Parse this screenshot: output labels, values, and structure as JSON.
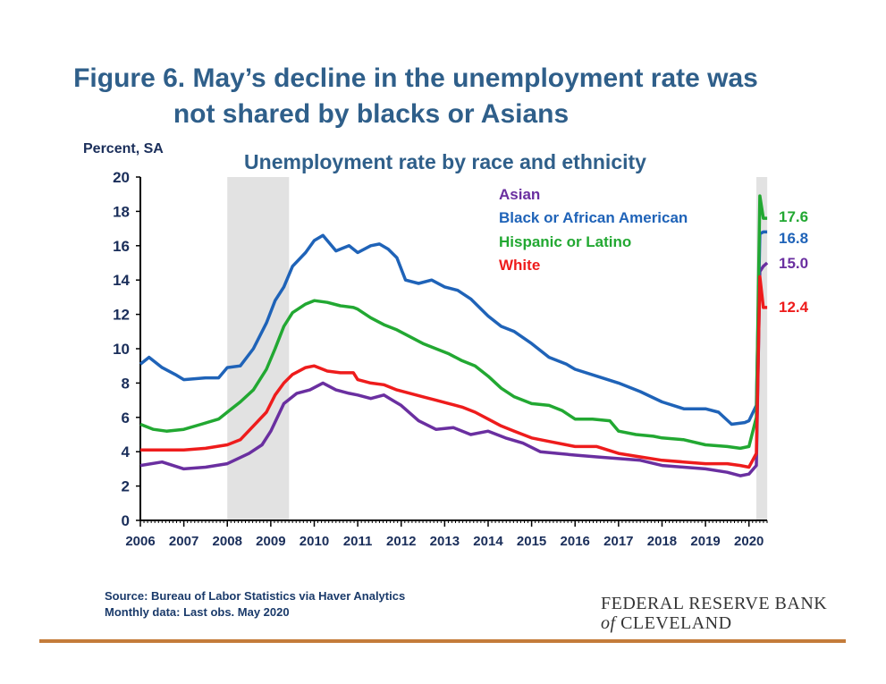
{
  "figure_title": {
    "line1": "Figure 6. May’s decline in the unemployment rate was",
    "line2": "not shared by blacks or Asians"
  },
  "footer": {
    "source": "Source: Bureau of Labor Statistics via Haver Analytics",
    "note": "Monthly data: Last obs. May 2020"
  },
  "logo": {
    "line1": "FEDERAL RESERVE BANK",
    "line2_italic": "of",
    "line2_rest": " CLEVELAND"
  },
  "colors": {
    "asian": "#6a2fa0",
    "black": "#1f63b8",
    "hispanic": "#22a832",
    "white": "#ee1c1c",
    "title": "#2f5f8a",
    "axis_text": "#1a2e5a",
    "recession": "#e2e2e2",
    "rule": "#c47c3a"
  },
  "chart_data": {
    "type": "line",
    "title": "Unemployment rate by race and ethnicity",
    "ylabel": "Percent, SA",
    "xlabel": "",
    "ylim": [
      0,
      20
    ],
    "yticks": [
      0,
      2,
      4,
      6,
      8,
      10,
      12,
      14,
      16,
      18,
      20
    ],
    "xlim": [
      2006,
      2020.417
    ],
    "x_tick_labels": [
      "2006",
      "2007",
      "2008",
      "2009",
      "2010",
      "2011",
      "2012",
      "2013",
      "2014",
      "2015",
      "2016",
      "2017",
      "2018",
      "2019",
      "2020"
    ],
    "grid": false,
    "recession_shading": [
      [
        2008.0,
        2009.42
      ],
      [
        2020.17,
        2020.42
      ]
    ],
    "legend": {
      "placement": "top-right",
      "style": "colored text"
    },
    "series": [
      {
        "name": "Asian",
        "color_key": "asian",
        "end_label": "15.0",
        "points": [
          [
            2006.0,
            3.2
          ],
          [
            2006.5,
            3.4
          ],
          [
            2007.0,
            3.0
          ],
          [
            2007.5,
            3.1
          ],
          [
            2008.0,
            3.3
          ],
          [
            2008.5,
            3.9
          ],
          [
            2008.8,
            4.4
          ],
          [
            2009.0,
            5.2
          ],
          [
            2009.3,
            6.8
          ],
          [
            2009.6,
            7.4
          ],
          [
            2009.9,
            7.6
          ],
          [
            2010.2,
            8.0
          ],
          [
            2010.5,
            7.6
          ],
          [
            2010.8,
            7.4
          ],
          [
            2011.0,
            7.3
          ],
          [
            2011.3,
            7.1
          ],
          [
            2011.6,
            7.3
          ],
          [
            2011.8,
            7.0
          ],
          [
            2012.0,
            6.7
          ],
          [
            2012.4,
            5.8
          ],
          [
            2012.8,
            5.3
          ],
          [
            2013.2,
            5.4
          ],
          [
            2013.6,
            5.0
          ],
          [
            2014.0,
            5.2
          ],
          [
            2014.4,
            4.8
          ],
          [
            2014.8,
            4.5
          ],
          [
            2015.2,
            4.0
          ],
          [
            2015.6,
            3.9
          ],
          [
            2016.0,
            3.8
          ],
          [
            2016.5,
            3.7
          ],
          [
            2017.0,
            3.6
          ],
          [
            2017.5,
            3.5
          ],
          [
            2018.0,
            3.2
          ],
          [
            2018.5,
            3.1
          ],
          [
            2019.0,
            3.0
          ],
          [
            2019.5,
            2.8
          ],
          [
            2019.8,
            2.6
          ],
          [
            2020.0,
            2.7
          ],
          [
            2020.17,
            3.2
          ],
          [
            2020.25,
            14.5
          ],
          [
            2020.33,
            14.8
          ],
          [
            2020.42,
            15.0
          ]
        ]
      },
      {
        "name": "Black or African American",
        "color_key": "black",
        "end_label": "16.8",
        "points": [
          [
            2006.0,
            9.1
          ],
          [
            2006.2,
            9.5
          ],
          [
            2006.5,
            8.9
          ],
          [
            2006.8,
            8.5
          ],
          [
            2007.0,
            8.2
          ],
          [
            2007.5,
            8.3
          ],
          [
            2007.8,
            8.3
          ],
          [
            2008.0,
            8.9
          ],
          [
            2008.3,
            9.0
          ],
          [
            2008.6,
            10.0
          ],
          [
            2008.9,
            11.5
          ],
          [
            2009.1,
            12.8
          ],
          [
            2009.3,
            13.6
          ],
          [
            2009.5,
            14.8
          ],
          [
            2009.8,
            15.6
          ],
          [
            2010.0,
            16.3
          ],
          [
            2010.2,
            16.6
          ],
          [
            2010.5,
            15.7
          ],
          [
            2010.8,
            16.0
          ],
          [
            2011.0,
            15.6
          ],
          [
            2011.3,
            16.0
          ],
          [
            2011.5,
            16.1
          ],
          [
            2011.7,
            15.8
          ],
          [
            2011.9,
            15.3
          ],
          [
            2012.1,
            14.0
          ],
          [
            2012.4,
            13.8
          ],
          [
            2012.7,
            14.0
          ],
          [
            2013.0,
            13.6
          ],
          [
            2013.3,
            13.4
          ],
          [
            2013.6,
            12.9
          ],
          [
            2014.0,
            11.9
          ],
          [
            2014.3,
            11.3
          ],
          [
            2014.6,
            11.0
          ],
          [
            2015.0,
            10.3
          ],
          [
            2015.4,
            9.5
          ],
          [
            2015.8,
            9.1
          ],
          [
            2016.0,
            8.8
          ],
          [
            2016.5,
            8.4
          ],
          [
            2017.0,
            8.0
          ],
          [
            2017.5,
            7.5
          ],
          [
            2018.0,
            6.9
          ],
          [
            2018.5,
            6.5
          ],
          [
            2019.0,
            6.5
          ],
          [
            2019.3,
            6.3
          ],
          [
            2019.6,
            5.6
          ],
          [
            2019.9,
            5.7
          ],
          [
            2020.0,
            5.8
          ],
          [
            2020.17,
            6.7
          ],
          [
            2020.25,
            16.7
          ],
          [
            2020.33,
            16.8
          ],
          [
            2020.42,
            16.8
          ]
        ]
      },
      {
        "name": "Hispanic or Latino",
        "color_key": "hispanic",
        "end_label": "17.6",
        "points": [
          [
            2006.0,
            5.6
          ],
          [
            2006.3,
            5.3
          ],
          [
            2006.6,
            5.2
          ],
          [
            2007.0,
            5.3
          ],
          [
            2007.4,
            5.6
          ],
          [
            2007.8,
            5.9
          ],
          [
            2008.0,
            6.3
          ],
          [
            2008.3,
            6.9
          ],
          [
            2008.6,
            7.6
          ],
          [
            2008.9,
            8.8
          ],
          [
            2009.1,
            10.0
          ],
          [
            2009.3,
            11.3
          ],
          [
            2009.5,
            12.1
          ],
          [
            2009.8,
            12.6
          ],
          [
            2010.0,
            12.8
          ],
          [
            2010.3,
            12.7
          ],
          [
            2010.6,
            12.5
          ],
          [
            2010.9,
            12.4
          ],
          [
            2011.0,
            12.3
          ],
          [
            2011.3,
            11.8
          ],
          [
            2011.6,
            11.4
          ],
          [
            2011.9,
            11.1
          ],
          [
            2012.2,
            10.7
          ],
          [
            2012.5,
            10.3
          ],
          [
            2012.8,
            10.0
          ],
          [
            2013.1,
            9.7
          ],
          [
            2013.4,
            9.3
          ],
          [
            2013.7,
            9.0
          ],
          [
            2014.0,
            8.4
          ],
          [
            2014.3,
            7.7
          ],
          [
            2014.6,
            7.2
          ],
          [
            2015.0,
            6.8
          ],
          [
            2015.4,
            6.7
          ],
          [
            2015.7,
            6.4
          ],
          [
            2016.0,
            5.9
          ],
          [
            2016.4,
            5.9
          ],
          [
            2016.8,
            5.8
          ],
          [
            2017.0,
            5.2
          ],
          [
            2017.4,
            5.0
          ],
          [
            2017.8,
            4.9
          ],
          [
            2018.0,
            4.8
          ],
          [
            2018.5,
            4.7
          ],
          [
            2019.0,
            4.4
          ],
          [
            2019.5,
            4.3
          ],
          [
            2019.8,
            4.2
          ],
          [
            2020.0,
            4.3
          ],
          [
            2020.17,
            6.0
          ],
          [
            2020.25,
            18.9
          ],
          [
            2020.33,
            17.6
          ],
          [
            2020.42,
            17.6
          ]
        ]
      },
      {
        "name": "White",
        "color_key": "white",
        "end_label": "12.4",
        "points": [
          [
            2006.0,
            4.1
          ],
          [
            2006.5,
            4.1
          ],
          [
            2007.0,
            4.1
          ],
          [
            2007.5,
            4.2
          ],
          [
            2008.0,
            4.4
          ],
          [
            2008.3,
            4.7
          ],
          [
            2008.6,
            5.5
          ],
          [
            2008.9,
            6.3
          ],
          [
            2009.1,
            7.3
          ],
          [
            2009.3,
            8.0
          ],
          [
            2009.5,
            8.5
          ],
          [
            2009.8,
            8.9
          ],
          [
            2010.0,
            9.0
          ],
          [
            2010.3,
            8.7
          ],
          [
            2010.6,
            8.6
          ],
          [
            2010.9,
            8.6
          ],
          [
            2011.0,
            8.2
          ],
          [
            2011.3,
            8.0
          ],
          [
            2011.6,
            7.9
          ],
          [
            2011.9,
            7.6
          ],
          [
            2012.2,
            7.4
          ],
          [
            2012.5,
            7.2
          ],
          [
            2012.8,
            7.0
          ],
          [
            2013.1,
            6.8
          ],
          [
            2013.4,
            6.6
          ],
          [
            2013.7,
            6.3
          ],
          [
            2014.0,
            5.9
          ],
          [
            2014.3,
            5.5
          ],
          [
            2014.6,
            5.2
          ],
          [
            2015.0,
            4.8
          ],
          [
            2015.4,
            4.6
          ],
          [
            2015.8,
            4.4
          ],
          [
            2016.0,
            4.3
          ],
          [
            2016.5,
            4.3
          ],
          [
            2017.0,
            3.9
          ],
          [
            2017.5,
            3.7
          ],
          [
            2018.0,
            3.5
          ],
          [
            2018.5,
            3.4
          ],
          [
            2019.0,
            3.3
          ],
          [
            2019.5,
            3.3
          ],
          [
            2019.8,
            3.2
          ],
          [
            2020.0,
            3.1
          ],
          [
            2020.17,
            3.9
          ],
          [
            2020.25,
            14.2
          ],
          [
            2020.33,
            12.4
          ],
          [
            2020.42,
            12.4
          ]
        ]
      }
    ]
  }
}
